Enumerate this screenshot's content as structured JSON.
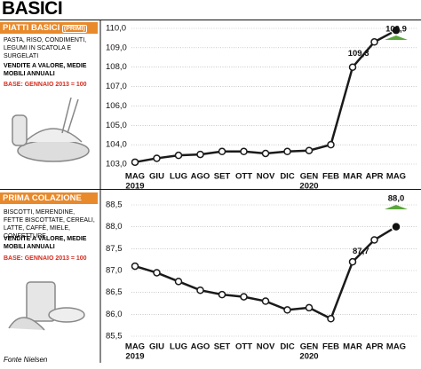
{
  "title": "BASICI",
  "source": "Fonte Nielsen",
  "chart_data": [
    {
      "type": "line",
      "title": "PIATTI BASICI",
      "title_tag": "(PRIMI)",
      "subtitle": "PASTA, RISO, CONDIMENTI, LEGUMI IN SCATOLA E SURGELATI",
      "note": "VENDITE A VALORE, MEDIE MOBILI ANNUALI",
      "base": "BASE: GENNAIO 2013 = 100",
      "categories": [
        "MAG",
        "GIU",
        "LUG",
        "AGO",
        "SET",
        "OTT",
        "NOV",
        "DIC",
        "GEN",
        "FEB",
        "MAR",
        "APR",
        "MAG"
      ],
      "years": [
        "2019",
        null,
        null,
        null,
        null,
        null,
        null,
        null,
        "2020",
        null,
        null,
        null,
        null
      ],
      "values": [
        103.1,
        103.3,
        103.45,
        103.5,
        103.65,
        103.65,
        103.55,
        103.65,
        103.7,
        104.0,
        108.0,
        109.3,
        109.9
      ],
      "value_labels": [
        null,
        null,
        null,
        null,
        null,
        null,
        null,
        null,
        null,
        null,
        null,
        "109,3",
        "109,9"
      ],
      "color": "#1a1a1a",
      "highlight_color": "#5aa63c",
      "ylim": [
        103,
        110
      ],
      "yticks": [
        {
          "value": 103,
          "label": "103,0"
        },
        {
          "value": 104,
          "label": "104,0"
        },
        {
          "value": 105,
          "label": "105,0"
        },
        {
          "value": 106,
          "label": "106,0"
        },
        {
          "value": 107,
          "label": "107,0"
        },
        {
          "value": 108,
          "label": "108,0"
        },
        {
          "value": 109,
          "label": "109,0"
        },
        {
          "value": 110,
          "label": "110,0"
        }
      ],
      "grid": true
    },
    {
      "type": "line",
      "title": "PRIMA COLAZIONE",
      "subtitle": "BISCOTTI, MERENDINE, FETTE BISCOTTATE, CEREALI, LATTE, CAFFÈ, MIELE, CONFETTURE",
      "note": "VENDITE A VALORE, MEDIE MOBILI ANNUALI",
      "base": "BASE: GENNAIO 2013 = 100",
      "categories": [
        "MAG",
        "GIU",
        "LUG",
        "AGO",
        "SET",
        "OTT",
        "NOV",
        "DIC",
        "GEN",
        "FEB",
        "MAR",
        "APR",
        "MAG"
      ],
      "years": [
        "2019",
        null,
        null,
        null,
        null,
        null,
        null,
        null,
        "2020",
        null,
        null,
        null,
        null
      ],
      "values": [
        87.1,
        86.95,
        86.75,
        86.55,
        86.45,
        86.4,
        86.3,
        86.1,
        86.15,
        85.9,
        87.2,
        87.7,
        88.0
      ],
      "value_labels": [
        null,
        null,
        null,
        null,
        null,
        null,
        null,
        null,
        null,
        null,
        null,
        "87,7",
        "88,0"
      ],
      "color": "#1a1a1a",
      "highlight_color": "#5aa63c",
      "ylim": [
        85.5,
        88.5
      ],
      "yticks": [
        {
          "value": 85.5,
          "label": "85,5"
        },
        {
          "value": 86,
          "label": "86,0"
        },
        {
          "value": 86.5,
          "label": "86,5"
        },
        {
          "value": 87,
          "label": "87,0"
        },
        {
          "value": 87.5,
          "label": "87,5"
        },
        {
          "value": 88,
          "label": "88,0"
        },
        {
          "value": 88.5,
          "label": "88,5"
        }
      ],
      "grid": true
    }
  ]
}
